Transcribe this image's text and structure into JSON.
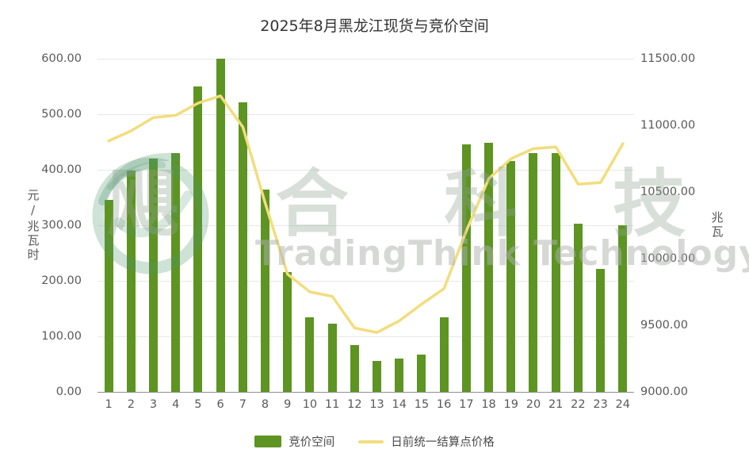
{
  "chart": {
    "title": "2025年8月黑龙江现货与竞价空间",
    "y_left_label": "元/兆瓦时",
    "y_right_label": "兆瓦",
    "y_left_ticks": [
      "600.00",
      "500.00",
      "400.00",
      "300.00",
      "200.00",
      "100.00",
      "0.00"
    ],
    "y_right_ticks": [
      "11500.00",
      "11000.00",
      "10500.00",
      "10000.00",
      "9500.00",
      "9000.00"
    ],
    "colors": {
      "bar": "#5d9422",
      "line": "#f2dd7d",
      "gridline": "#e8e8e8",
      "axis_text": "#595959"
    },
    "legend": [
      {
        "label": "竞价空间",
        "type": "bar"
      },
      {
        "label": "日前统一结算点价格",
        "type": "line"
      }
    ]
  },
  "watermark": {
    "cn": "飓合科技",
    "en": "TradingThink Technology"
  },
  "chart_data": {
    "type": "bar+line",
    "title": "2025年8月黑龙江现货与竞价空间",
    "categories": [
      1,
      2,
      3,
      4,
      5,
      6,
      7,
      8,
      9,
      10,
      11,
      12,
      13,
      14,
      15,
      16,
      17,
      18,
      19,
      20,
      21,
      22,
      23,
      24
    ],
    "y_left": {
      "label": "元/兆瓦时",
      "min": 0,
      "max": 600
    },
    "y_right": {
      "label": "兆瓦",
      "min": 9000,
      "max": 11500
    },
    "grid": true,
    "legend_position": "bottom",
    "series": [
      {
        "name": "竞价空间",
        "type": "bar",
        "axis": "right",
        "unit": "兆瓦",
        "values": [
          10440,
          10660,
          10750,
          10790,
          11290,
          11500,
          11170,
          10520,
          9900,
          9560,
          9510,
          9350,
          9230,
          9250,
          9280,
          9560,
          10860,
          10870,
          10730,
          10790,
          10790,
          10260,
          9920,
          10250
        ]
      },
      {
        "name": "日前统一结算点价格",
        "type": "line",
        "axis": "left",
        "unit": "元/兆瓦时",
        "values": [
          452,
          470,
          494,
          498,
          520,
          533,
          477,
          340,
          212,
          180,
          172,
          115,
          107,
          128,
          158,
          186,
          290,
          384,
          420,
          438,
          441,
          374,
          377,
          447
        ]
      }
    ]
  }
}
